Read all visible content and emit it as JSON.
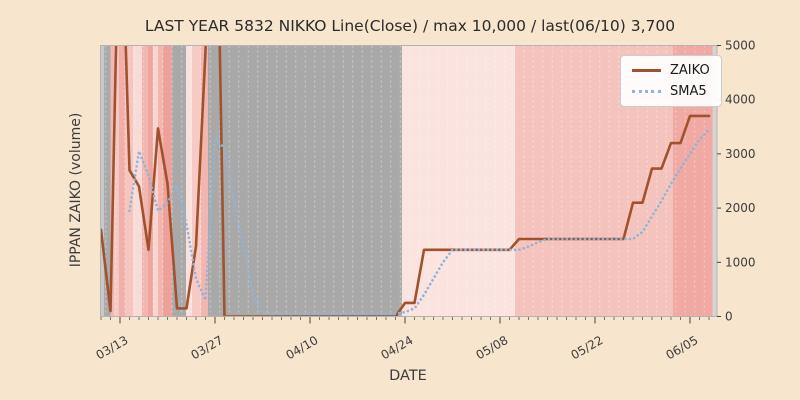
{
  "figure": {
    "background_color": "#f7e5cd",
    "plot_border_color": "#b3b3b3",
    "text_color": "#3d3d3d",
    "title_color": "#2b2b2b"
  },
  "chart_data": {
    "type": "line",
    "title": "LAST YEAR 5832 NIKKO Line(Close) / max 10,000 / last(06/10) 3,700",
    "xlabel": "DATE",
    "ylabel": "IPPAN ZAIKO (volume)",
    "ylim": [
      0,
      5000
    ],
    "y_ticks": [
      0,
      1000,
      2000,
      3000,
      4000,
      5000
    ],
    "y_axis_side": "right",
    "grid": "vertical-day-dashes",
    "n_points": 65,
    "x_ticks": [
      {
        "index": 2,
        "label": "03/13"
      },
      {
        "index": 12,
        "label": "03/27"
      },
      {
        "index": 22,
        "label": "04/10"
      },
      {
        "index": 32,
        "label": "04/24"
      },
      {
        "index": 42,
        "label": "05/08"
      },
      {
        "index": 52,
        "label": "05/22"
      },
      {
        "index": 62,
        "label": "06/05"
      }
    ],
    "last_point": {
      "date": "06/10",
      "value": 3700
    },
    "max_value_noted": 10000,
    "legend": {
      "position": "upper-right",
      "entries": [
        {
          "label": "ZAIKO",
          "color": "#a0522d",
          "style": "solid"
        },
        {
          "label": "SMA5",
          "color": "#8fb4d8",
          "style": "dotted"
        }
      ]
    },
    "series": [
      {
        "name": "ZAIKO",
        "color": "#a0522d",
        "style": "solid",
        "width": 2.6,
        "values": [
          1600,
          100,
          8500,
          2700,
          2400,
          1230,
          3470,
          2450,
          150,
          150,
          1300,
          4900,
          10000,
          0,
          0,
          0,
          0,
          0,
          0,
          0,
          0,
          0,
          0,
          0,
          0,
          0,
          0,
          0,
          0,
          0,
          0,
          0,
          250,
          250,
          1230,
          1230,
          1230,
          1230,
          1230,
          1230,
          1230,
          1230,
          1230,
          1230,
          1430,
          1430,
          1430,
          1430,
          1430,
          1430,
          1430,
          1430,
          1430,
          1430,
          1430,
          1430,
          2100,
          2100,
          2730,
          2730,
          3200,
          3200,
          3700,
          3700,
          3700
        ]
      },
      {
        "name": "SMA5",
        "color": "#8fb4d8",
        "style": "dotted",
        "width": 2.6,
        "values": [
          null,
          null,
          null,
          1950,
          3050,
          2600,
          1950,
          2100,
          2400,
          1700,
          700,
          300,
          3300,
          3100,
          2100,
          1300,
          400,
          60,
          50,
          50,
          50,
          50,
          50,
          50,
          50,
          50,
          50,
          50,
          50,
          50,
          50,
          50,
          80,
          150,
          400,
          700,
          1000,
          1230,
          1230,
          1230,
          1230,
          1230,
          1230,
          1230,
          1230,
          1290,
          1370,
          1430,
          1430,
          1430,
          1430,
          1430,
          1430,
          1430,
          1430,
          1430,
          1430,
          1560,
          1850,
          2130,
          2450,
          2730,
          3000,
          3270,
          3450
        ]
      }
    ],
    "background_bands": [
      {
        "from_day": -0.05,
        "to_day": 0.32,
        "color": "#c9c9c9"
      },
      {
        "from_day": 0.32,
        "to_day": 1.0,
        "color": "#a9a9a9"
      },
      {
        "from_day": 1.0,
        "to_day": 1.37,
        "color": "#f2b8b2"
      },
      {
        "from_day": 1.37,
        "to_day": 1.89,
        "color": "#f5c9c4"
      },
      {
        "from_day": 1.89,
        "to_day": 2.53,
        "color": "#f1afa9"
      },
      {
        "from_day": 2.53,
        "to_day": 3.37,
        "color": "#f5c5c0"
      },
      {
        "from_day": 3.37,
        "to_day": 4.32,
        "color": "#f9dbd7"
      },
      {
        "from_day": 4.32,
        "to_day": 4.95,
        "color": "#f2b5af"
      },
      {
        "from_day": 4.95,
        "to_day": 5.47,
        "color": "#efa49e"
      },
      {
        "from_day": 5.47,
        "to_day": 6.0,
        "color": "#f8d5d1"
      },
      {
        "from_day": 6.0,
        "to_day": 6.53,
        "color": "#f2b5af"
      },
      {
        "from_day": 6.53,
        "to_day": 7.47,
        "color": "#eea09a"
      },
      {
        "from_day": 7.47,
        "to_day": 8.95,
        "color": "#a9a9a9"
      },
      {
        "from_day": 8.95,
        "to_day": 9.58,
        "color": "#fae1de"
      },
      {
        "from_day": 9.58,
        "to_day": 10.53,
        "color": "#f6cbc6"
      },
      {
        "from_day": 10.53,
        "to_day": 11.26,
        "color": "#f2b5af"
      },
      {
        "from_day": 11.26,
        "to_day": 31.68,
        "color": "#a9a9a9"
      },
      {
        "from_day": 31.68,
        "to_day": 43.58,
        "color": "#fbe3e0"
      },
      {
        "from_day": 43.58,
        "to_day": 60.2,
        "color": "#f5c3bd"
      },
      {
        "from_day": 60.2,
        "to_day": 64.4,
        "color": "#f0a9a3"
      },
      {
        "from_day": 64.4,
        "to_day": 64.8,
        "color": "#d5d5d5"
      }
    ]
  }
}
